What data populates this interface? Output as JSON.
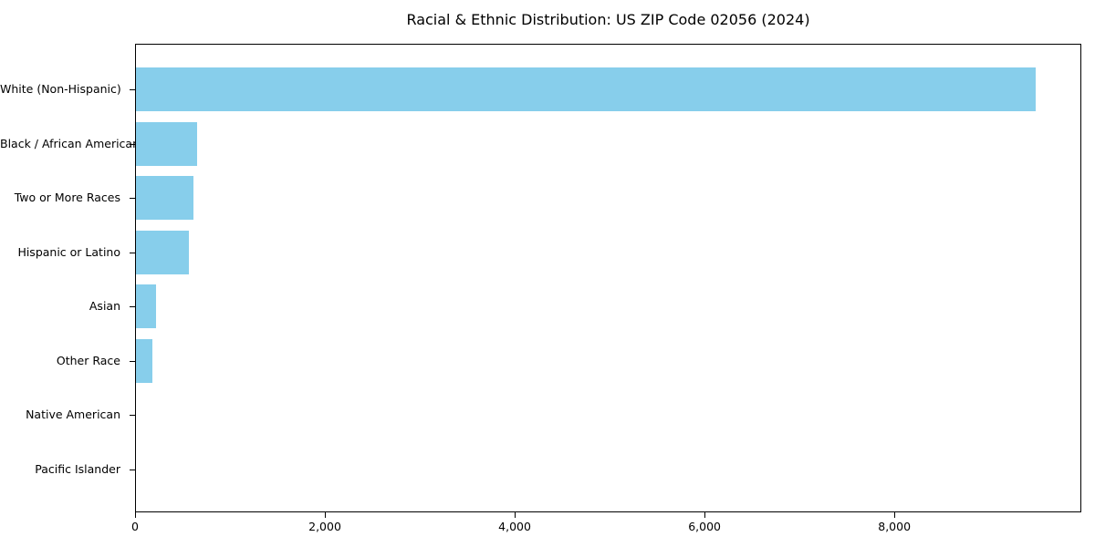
{
  "chart_data": {
    "type": "bar",
    "orientation": "horizontal",
    "title": "Racial & Ethnic Distribution: US ZIP Code 02056 (2024)",
    "categories": [
      "White (Non-Hispanic)",
      "Black / African American",
      "Two or More Races",
      "Hispanic or Latino",
      "Asian",
      "Other Race",
      "Native American",
      "Pacific Islander"
    ],
    "values": [
      9480,
      645,
      610,
      560,
      215,
      175,
      0,
      0
    ],
    "xlabel": "",
    "ylabel": "",
    "xlim": [
      0,
      9950
    ],
    "xticks": [
      0,
      2000,
      4000,
      6000,
      8000
    ],
    "xtick_labels": [
      "0",
      "2,000",
      "4,000",
      "6,000",
      "8,000"
    ],
    "bar_color": "#87CEEB",
    "axis_color": "#000000",
    "background_color": "#ffffff",
    "grid": false,
    "legend": null
  }
}
